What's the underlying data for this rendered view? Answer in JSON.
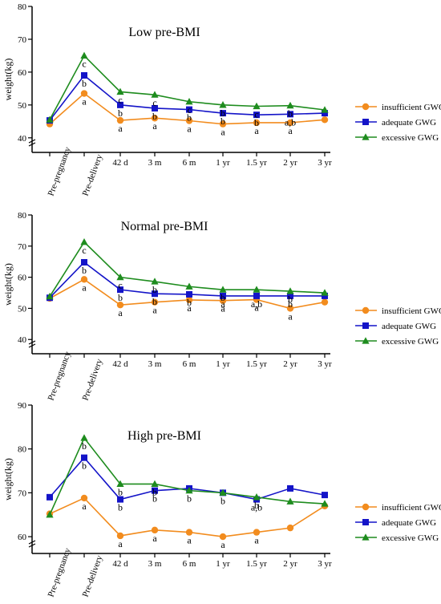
{
  "colors": {
    "insufficient": "#f28c1e",
    "adequate": "#1414c8",
    "excessive": "#1e8c1e"
  },
  "chart_data": [
    {
      "type": "line",
      "title": "Low pre-BMI",
      "ylabel": "weight(kg)",
      "categories": [
        "Pre-pregnancy",
        "Pre-delivery",
        "42 d",
        "3 m",
        "6 m",
        "1 yr",
        "1.5 yr",
        "2 yr",
        "3 yr"
      ],
      "yticks": [
        40,
        50,
        60,
        70,
        80
      ],
      "ylim": [
        38,
        80
      ],
      "series": [
        {
          "name": "insufficient GWG",
          "marker": "circle",
          "values": [
            44.2,
            53.5,
            45.3,
            46.0,
            45.2,
            44.2,
            44.6,
            44.6,
            45.5
          ]
        },
        {
          "name": "adequate GWG",
          "marker": "square",
          "values": [
            45.3,
            59.0,
            50.0,
            49.0,
            48.6,
            47.5,
            47.0,
            47.2,
            47.5
          ]
        },
        {
          "name": "excessive GWG",
          "marker": "triangle",
          "values": [
            45.5,
            65.0,
            54.0,
            53.1,
            51.0,
            50.0,
            49.6,
            49.8,
            48.5
          ]
        }
      ],
      "annotations": [
        {
          "cat": 1,
          "value": 65.0,
          "text": "c"
        },
        {
          "cat": 1,
          "value": 59.0,
          "text": "b"
        },
        {
          "cat": 1,
          "value": 53.5,
          "text": "a"
        },
        {
          "cat": 2,
          "value": 54.0,
          "text": "c"
        },
        {
          "cat": 2,
          "value": 50.0,
          "text": "b"
        },
        {
          "cat": 2,
          "value": 45.3,
          "text": "a"
        },
        {
          "cat": 3,
          "value": 53.1,
          "text": "c"
        },
        {
          "cat": 3,
          "value": 49.0,
          "text": "b"
        },
        {
          "cat": 3,
          "value": 46.0,
          "text": "a"
        },
        {
          "cat": 4,
          "value": 51.0,
          "text": "c"
        },
        {
          "cat": 4,
          "value": 48.6,
          "text": "b"
        },
        {
          "cat": 4,
          "value": 45.2,
          "text": "a"
        },
        {
          "cat": 5,
          "value": 50.0,
          "text": "b"
        },
        {
          "cat": 5,
          "value": 47.5,
          "text": "b"
        },
        {
          "cat": 5,
          "value": 44.2,
          "text": "a"
        },
        {
          "cat": 6,
          "value": 49.6,
          "text": "c"
        },
        {
          "cat": 6,
          "value": 47.0,
          "text": "b"
        },
        {
          "cat": 6,
          "value": 44.6,
          "text": "a"
        },
        {
          "cat": 7,
          "value": 49.8,
          "text": "b"
        },
        {
          "cat": 7,
          "value": 47.2,
          "text": "a,b"
        },
        {
          "cat": 7,
          "value": 44.6,
          "text": "a"
        }
      ]
    },
    {
      "type": "line",
      "title": "Normal pre-BMI",
      "ylabel": "weight(kg)",
      "categories": [
        "Pre-pregnancy",
        "Pre-delivery",
        "42 d",
        "3 m",
        "6 m",
        "1 yr",
        "1.5 yr",
        "2 yr",
        "3 yr"
      ],
      "yticks": [
        40,
        50,
        60,
        70,
        80
      ],
      "ylim": [
        38,
        80
      ],
      "series": [
        {
          "name": "insufficient GWG",
          "marker": "circle",
          "values": [
            53.2,
            59.3,
            51.1,
            52.0,
            52.7,
            52.5,
            52.8,
            50.0,
            52.0
          ]
        },
        {
          "name": "adequate GWG",
          "marker": "square",
          "values": [
            53.4,
            64.8,
            56.0,
            54.7,
            54.5,
            54.0,
            54.0,
            54.0,
            54.0
          ]
        },
        {
          "name": "excessive GWG",
          "marker": "triangle",
          "values": [
            53.8,
            71.3,
            60.0,
            58.6,
            57.0,
            56.0,
            56.0,
            55.5,
            55.0
          ]
        }
      ],
      "annotations": [
        {
          "cat": 1,
          "value": 71.3,
          "text": "c"
        },
        {
          "cat": 1,
          "value": 64.8,
          "text": "b"
        },
        {
          "cat": 1,
          "value": 59.3,
          "text": "a"
        },
        {
          "cat": 2,
          "value": 60.0,
          "text": "c"
        },
        {
          "cat": 2,
          "value": 56.0,
          "text": "b"
        },
        {
          "cat": 2,
          "value": 51.1,
          "text": "a"
        },
        {
          "cat": 3,
          "value": 58.6,
          "text": "b"
        },
        {
          "cat": 3,
          "value": 54.7,
          "text": "b"
        },
        {
          "cat": 3,
          "value": 52.0,
          "text": "a"
        },
        {
          "cat": 4,
          "value": 54.5,
          "text": "b"
        },
        {
          "cat": 4,
          "value": 52.7,
          "text": "a"
        },
        {
          "cat": 5,
          "value": 56.0,
          "text": "b"
        },
        {
          "cat": 5,
          "value": 54.0,
          "text": "a"
        },
        {
          "cat": 5,
          "value": 52.5,
          "text": "a"
        },
        {
          "cat": 6,
          "value": 54.0,
          "text": "a,b"
        },
        {
          "cat": 6,
          "value": 52.8,
          "text": "a"
        },
        {
          "cat": 7,
          "value": 55.5,
          "text": "b"
        },
        {
          "cat": 7,
          "value": 54.0,
          "text": "b"
        },
        {
          "cat": 7,
          "value": 50.0,
          "text": "a"
        }
      ]
    },
    {
      "type": "line",
      "title": "High pre-BMI",
      "ylabel": "weight(kg)",
      "categories": [
        "Pre-pregnancy",
        "Pre-delivery",
        "42 d",
        "3 m",
        "6 m",
        "1 yr",
        "1.5 yr",
        "2 yr",
        "3 yr"
      ],
      "yticks": [
        60,
        70,
        80,
        90
      ],
      "ylim": [
        58,
        90
      ],
      "series": [
        {
          "name": "insufficient GWG",
          "marker": "circle",
          "values": [
            65.2,
            68.8,
            60.2,
            61.5,
            61.0,
            60.0,
            61.0,
            62.0,
            67.0
          ]
        },
        {
          "name": "adequate GWG",
          "marker": "square",
          "values": [
            69.0,
            78.0,
            68.5,
            70.5,
            71.0,
            70.0,
            68.5,
            71.0,
            69.5
          ]
        },
        {
          "name": "excessive GWG",
          "marker": "triangle",
          "values": [
            65.0,
            82.5,
            72.0,
            72.0,
            70.5,
            70.0,
            69.0,
            68.0,
            67.5
          ]
        }
      ],
      "annotations": [
        {
          "cat": 1,
          "value": 82.5,
          "text": "b"
        },
        {
          "cat": 1,
          "value": 78.0,
          "text": "b"
        },
        {
          "cat": 1,
          "value": 68.8,
          "text": "a"
        },
        {
          "cat": 2,
          "value": 72.0,
          "text": "b"
        },
        {
          "cat": 2,
          "value": 68.5,
          "text": "b"
        },
        {
          "cat": 2,
          "value": 60.2,
          "text": "a"
        },
        {
          "cat": 3,
          "value": 72.0,
          "text": "b"
        },
        {
          "cat": 3,
          "value": 70.5,
          "text": "b"
        },
        {
          "cat": 3,
          "value": 61.5,
          "text": "a"
        },
        {
          "cat": 4,
          "value": 70.5,
          "text": "b"
        },
        {
          "cat": 4,
          "value": 61.0,
          "text": "a"
        },
        {
          "cat": 5,
          "value": 70.0,
          "text": "b"
        },
        {
          "cat": 5,
          "value": 60.0,
          "text": "a"
        },
        {
          "cat": 6,
          "value": 69.0,
          "text": "b"
        },
        {
          "cat": 6,
          "value": 68.5,
          "text": "a,b"
        },
        {
          "cat": 6,
          "value": 61.0,
          "text": "a"
        }
      ]
    }
  ]
}
